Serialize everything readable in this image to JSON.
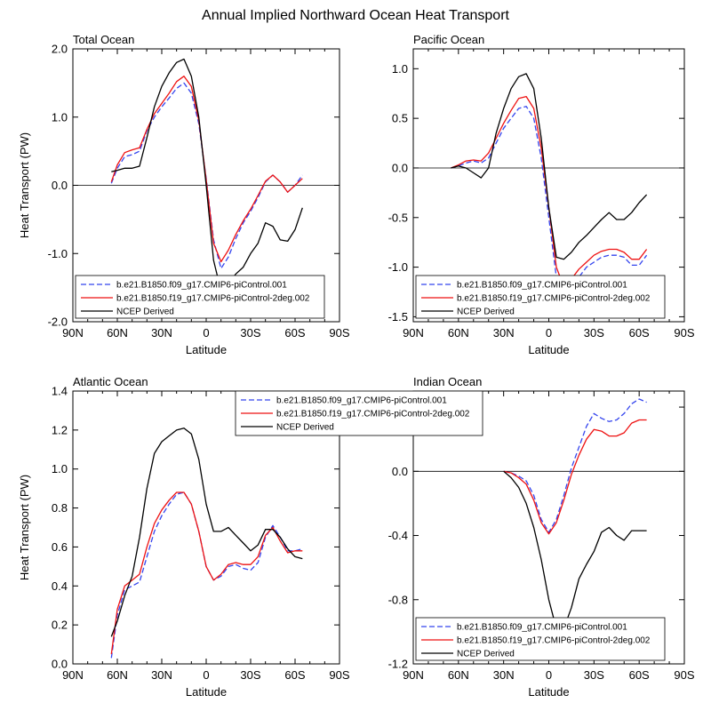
{
  "figure_title": "Annual Implied Northward Ocean Heat Transport",
  "legend_entries": [
    {
      "label": "b.e21.B1850.f09_g17.CMIP6-piControl.001",
      "color": "#3344ee",
      "dash": "6,3"
    },
    {
      "label": "b.e21.B1850.f19_g17.CMIP6-piControl-2deg.002",
      "color": "#ee1111",
      "dash": ""
    },
    {
      "label": "NCEP Derived",
      "color": "#000000",
      "dash": ""
    }
  ],
  "chart_data": [
    {
      "type": "line",
      "title": "Total Ocean",
      "xlabel": "Latitude",
      "ylabel": "Heat Transport (PW)",
      "xlim": [
        90,
        -90
      ],
      "ylim": [
        -2.0,
        2.0
      ],
      "yticks": [
        -2.0,
        -1.0,
        0.0,
        1.0,
        2.0
      ],
      "ytick_labels": [
        "-2.0",
        "-1.0",
        "0.0",
        "1.0",
        "2.0"
      ],
      "xticks": [
        90,
        60,
        30,
        0,
        -30,
        -60,
        -90
      ],
      "xtick_labels": [
        "90N",
        "60N",
        "30N",
        "0",
        "30S",
        "60S",
        "90S"
      ],
      "legend_position": "bottom-left",
      "series": [
        {
          "name": "b.e21.B1850.f09_g17.CMIP6-piControl.001",
          "x": [
            64,
            60,
            55,
            50,
            45,
            40,
            35,
            30,
            25,
            20,
            15,
            10,
            5,
            0,
            -5,
            -10,
            -15,
            -20,
            -25,
            -30,
            -35,
            -40,
            -45,
            -50,
            -55,
            -60,
            -65
          ],
          "y": [
            0.03,
            0.25,
            0.42,
            0.45,
            0.5,
            0.8,
            1.0,
            1.15,
            1.28,
            1.42,
            1.5,
            1.35,
            0.9,
            0.1,
            -0.8,
            -1.22,
            -1.05,
            -0.78,
            -0.55,
            -0.38,
            -0.18,
            0.05,
            0.15,
            0.05,
            -0.1,
            0.0,
            0.15
          ]
        },
        {
          "name": "b.e21.B1850.f19_g17.CMIP6-piControl-2deg.002",
          "x": [
            64,
            60,
            55,
            50,
            45,
            40,
            35,
            30,
            25,
            20,
            15,
            10,
            5,
            0,
            -5,
            -10,
            -15,
            -20,
            -25,
            -30,
            -35,
            -40,
            -45,
            -50,
            -55,
            -60,
            -65
          ],
          "y": [
            0.05,
            0.3,
            0.48,
            0.52,
            0.55,
            0.82,
            1.05,
            1.2,
            1.35,
            1.52,
            1.6,
            1.45,
            0.95,
            0.08,
            -0.85,
            -1.12,
            -0.95,
            -0.72,
            -0.52,
            -0.35,
            -0.15,
            0.06,
            0.15,
            0.05,
            -0.1,
            0.0,
            0.1
          ]
        },
        {
          "name": "NCEP Derived",
          "x": [
            64,
            60,
            55,
            50,
            45,
            40,
            35,
            30,
            25,
            20,
            15,
            10,
            5,
            0,
            -5,
            -10,
            -15,
            -20,
            -25,
            -30,
            -35,
            -40,
            -45,
            -50,
            -55,
            -60,
            -65
          ],
          "y": [
            0.2,
            0.22,
            0.25,
            0.25,
            0.28,
            0.7,
            1.15,
            1.45,
            1.65,
            1.8,
            1.85,
            1.6,
            1.0,
            0.0,
            -1.1,
            -1.55,
            -1.45,
            -1.3,
            -1.2,
            -1.0,
            -0.85,
            -0.55,
            -0.6,
            -0.8,
            -0.82,
            -0.65,
            -0.33
          ]
        }
      ]
    },
    {
      "type": "line",
      "title": "Pacific Ocean",
      "xlabel": "Latitude",
      "ylabel": "",
      "xlim": [
        90,
        -90
      ],
      "ylim": [
        -1.55,
        1.2
      ],
      "yticks": [
        -1.5,
        -1.0,
        -0.5,
        0.0,
        0.5,
        1.0
      ],
      "ytick_labels": [
        "-1.5",
        "-1.0",
        "-0.5",
        "0.0",
        "0.5",
        "1.0"
      ],
      "xticks": [
        90,
        60,
        30,
        0,
        -30,
        -60,
        -90
      ],
      "xtick_labels": [
        "90N",
        "60N",
        "30N",
        "0",
        "30S",
        "60S",
        "90S"
      ],
      "legend_position": "bottom-left",
      "series": [
        {
          "name": "b.e21.B1850.f09_g17.CMIP6-piControl.001",
          "x": [
            65,
            60,
            55,
            50,
            45,
            40,
            35,
            30,
            25,
            20,
            15,
            10,
            5,
            0,
            -5,
            -10,
            -15,
            -20,
            -25,
            -30,
            -35,
            -40,
            -45,
            -50,
            -55,
            -60,
            -65
          ],
          "y": [
            0.0,
            0.02,
            0.05,
            0.07,
            0.05,
            0.1,
            0.25,
            0.4,
            0.5,
            0.6,
            0.62,
            0.5,
            0.1,
            -0.5,
            -1.1,
            -1.3,
            -1.2,
            -1.1,
            -1.0,
            -0.95,
            -0.9,
            -0.88,
            -0.88,
            -0.9,
            -0.98,
            -0.98,
            -0.88
          ]
        },
        {
          "name": "b.e21.B1850.f19_g17.CMIP6-piControl-2deg.002",
          "x": [
            65,
            60,
            55,
            50,
            45,
            40,
            35,
            30,
            25,
            20,
            15,
            10,
            5,
            0,
            -5,
            -10,
            -15,
            -20,
            -25,
            -30,
            -35,
            -40,
            -45,
            -50,
            -55,
            -60,
            -65
          ],
          "y": [
            0.0,
            0.03,
            0.07,
            0.08,
            0.07,
            0.15,
            0.3,
            0.45,
            0.58,
            0.7,
            0.72,
            0.6,
            0.2,
            -0.4,
            -1.0,
            -1.2,
            -1.12,
            -1.02,
            -0.95,
            -0.88,
            -0.84,
            -0.82,
            -0.82,
            -0.85,
            -0.92,
            -0.92,
            -0.82
          ]
        },
        {
          "name": "NCEP Derived",
          "x": [
            65,
            60,
            55,
            50,
            45,
            40,
            35,
            30,
            25,
            20,
            15,
            10,
            5,
            0,
            -5,
            -10,
            -15,
            -20,
            -25,
            -30,
            -35,
            -40,
            -45,
            -50,
            -55,
            -60,
            -65
          ],
          "y": [
            0.0,
            0.02,
            0.0,
            -0.05,
            -0.1,
            0.0,
            0.35,
            0.6,
            0.8,
            0.92,
            0.95,
            0.8,
            0.3,
            -0.4,
            -0.9,
            -0.92,
            -0.85,
            -0.75,
            -0.68,
            -0.6,
            -0.52,
            -0.45,
            -0.52,
            -0.52,
            -0.45,
            -0.35,
            -0.27
          ]
        }
      ]
    },
    {
      "type": "line",
      "title": "Atlantic Ocean",
      "xlabel": "Latitude",
      "ylabel": "Heat Transport (PW)",
      "xlim": [
        90,
        -90
      ],
      "ylim": [
        0.0,
        1.4
      ],
      "yticks": [
        0.0,
        0.2,
        0.4,
        0.6,
        0.8,
        1.0,
        1.2,
        1.4
      ],
      "ytick_labels": [
        "0.0",
        "0.2",
        "0.4",
        "0.6",
        "0.8",
        "1.0",
        "1.2",
        "1.4"
      ],
      "xticks": [
        90,
        60,
        30,
        0,
        -30,
        -60,
        -90
      ],
      "xtick_labels": [
        "90N",
        "60N",
        "30N",
        "0",
        "30S",
        "60S",
        "90S"
      ],
      "legend_position": "top-right",
      "series": [
        {
          "name": "b.e21.B1850.f09_g17.CMIP6-piControl.001",
          "x": [
            64,
            60,
            55,
            50,
            45,
            40,
            35,
            30,
            25,
            20,
            15,
            10,
            5,
            0,
            -5,
            -10,
            -15,
            -20,
            -25,
            -30,
            -35,
            -40,
            -45,
            -50,
            -55,
            -60,
            -65
          ],
          "y": [
            0.03,
            0.25,
            0.38,
            0.4,
            0.42,
            0.55,
            0.68,
            0.76,
            0.82,
            0.87,
            0.88,
            0.82,
            0.68,
            0.5,
            0.43,
            0.45,
            0.5,
            0.51,
            0.49,
            0.48,
            0.52,
            0.65,
            0.71,
            0.65,
            0.58,
            0.58,
            0.59
          ]
        },
        {
          "name": "b.e21.B1850.f19_g17.CMIP6-piControl-2deg.002",
          "x": [
            64,
            60,
            55,
            50,
            45,
            40,
            35,
            30,
            25,
            20,
            15,
            10,
            5,
            0,
            -5,
            -10,
            -15,
            -20,
            -25,
            -30,
            -35,
            -40,
            -45,
            -50,
            -55,
            -60,
            -65
          ],
          "y": [
            0.05,
            0.28,
            0.4,
            0.43,
            0.46,
            0.6,
            0.72,
            0.79,
            0.84,
            0.88,
            0.88,
            0.82,
            0.68,
            0.5,
            0.43,
            0.46,
            0.51,
            0.52,
            0.51,
            0.51,
            0.55,
            0.66,
            0.7,
            0.63,
            0.57,
            0.58,
            0.58
          ]
        },
        {
          "name": "NCEP Derived",
          "x": [
            64,
            60,
            55,
            50,
            45,
            40,
            35,
            30,
            25,
            20,
            15,
            10,
            5,
            0,
            -5,
            -10,
            -15,
            -20,
            -25,
            -30,
            -35,
            -40,
            -45,
            -50,
            -55,
            -60,
            -65
          ],
          "y": [
            0.14,
            0.22,
            0.35,
            0.45,
            0.65,
            0.9,
            1.08,
            1.14,
            1.17,
            1.2,
            1.21,
            1.18,
            1.05,
            0.82,
            0.68,
            0.68,
            0.7,
            0.66,
            0.62,
            0.58,
            0.61,
            0.69,
            0.69,
            0.65,
            0.59,
            0.55,
            0.54
          ]
        }
      ]
    },
    {
      "type": "line",
      "title": "Indian Ocean",
      "xlabel": "Latitude",
      "ylabel": "",
      "xlim": [
        90,
        -90
      ],
      "ylim": [
        -1.2,
        0.5
      ],
      "yticks": [
        -1.2,
        -0.8,
        -0.4,
        0.0,
        0.4
      ],
      "ytick_labels": [
        "-1.2",
        "-0.8",
        "-0.4",
        "0.0",
        "0.4"
      ],
      "xticks": [
        90,
        60,
        30,
        0,
        -30,
        -60,
        -90
      ],
      "xtick_labels": [
        "90N",
        "60N",
        "30N",
        "0",
        "30S",
        "60S",
        "90S"
      ],
      "legend_position": "bottom-left",
      "series": [
        {
          "name": "b.e21.B1850.f09_g17.CMIP6-piControl.001",
          "x": [
            30,
            25,
            20,
            15,
            10,
            5,
            0,
            -5,
            -10,
            -15,
            -20,
            -25,
            -30,
            -35,
            -40,
            -45,
            -50,
            -55,
            -60,
            -65
          ],
          "y": [
            0.0,
            -0.01,
            -0.03,
            -0.06,
            -0.15,
            -0.3,
            -0.38,
            -0.3,
            -0.15,
            0.02,
            0.15,
            0.28,
            0.36,
            0.33,
            0.31,
            0.32,
            0.36,
            0.42,
            0.45,
            0.43
          ]
        },
        {
          "name": "b.e21.B1850.f19_g17.CMIP6-piControl-2deg.002",
          "x": [
            30,
            25,
            20,
            15,
            10,
            5,
            0,
            -5,
            -10,
            -15,
            -20,
            -25,
            -30,
            -35,
            -40,
            -45,
            -50,
            -55,
            -60,
            -65
          ],
          "y": [
            0.0,
            -0.01,
            -0.04,
            -0.08,
            -0.18,
            -0.32,
            -0.39,
            -0.32,
            -0.18,
            -0.02,
            0.1,
            0.2,
            0.26,
            0.25,
            0.22,
            0.22,
            0.24,
            0.3,
            0.32,
            0.32
          ]
        },
        {
          "name": "NCEP Derived",
          "x": [
            30,
            25,
            20,
            15,
            10,
            5,
            0,
            -5,
            -10,
            -15,
            -20,
            -25,
            -30,
            -35,
            -40,
            -45,
            -50,
            -55,
            -60,
            -65
          ],
          "y": [
            0.0,
            -0.04,
            -0.1,
            -0.2,
            -0.35,
            -0.55,
            -0.8,
            -0.98,
            -0.98,
            -0.85,
            -0.67,
            -0.58,
            -0.5,
            -0.38,
            -0.35,
            -0.4,
            -0.43,
            -0.37,
            -0.37,
            -0.37
          ]
        }
      ]
    }
  ]
}
